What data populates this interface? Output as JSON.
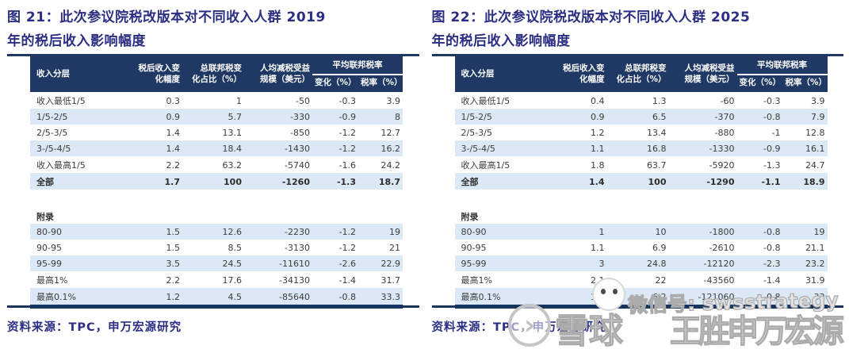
{
  "panels": [
    {
      "title": "图 21：此次参议院税改版本对不同收入人群 2019\n年的税后收入影响幅度",
      "table": {
        "header": {
          "income_group": "收入分层",
          "after_tax_change": "税后收入变\n化幅度",
          "federal_tax_share": "总联邦税变\n化占比（%）",
          "per_capita_benefit": "人均减税受益\n规模（美元）",
          "avg_federal_rate_group": "平均联邦税率",
          "rate_change": "变化（%）",
          "rate_level": "税率（%）"
        },
        "main_rows": [
          [
            "收入最低1/5",
            "0.3",
            "1",
            "-50",
            "-0.3",
            "3.9"
          ],
          [
            "1/5-2/5",
            "0.9",
            "5.7",
            "-330",
            "-0.9",
            "8"
          ],
          [
            "2/5-3/5",
            "1.4",
            "13.1",
            "-850",
            "-1.2",
            "12.7"
          ],
          [
            "3-/5-4/5",
            "1.4",
            "18.4",
            "-1430",
            "-1.2",
            "16.2"
          ],
          [
            "收入最高1/5",
            "2.2",
            "63.2",
            "-5740",
            "-1.6",
            "24.2"
          ],
          [
            "全部",
            "1.7",
            "100",
            "-1260",
            "-1.3",
            "18.7"
          ]
        ],
        "appendix_label": "附录",
        "appendix_rows": [
          [
            "80-90",
            "1.5",
            "12.6",
            "-2230",
            "-1.2",
            "19"
          ],
          [
            "90-95",
            "1.5",
            "8.5",
            "-3130",
            "-1.2",
            "21"
          ],
          [
            "95-99",
            "3.5",
            "24.5",
            "-11610",
            "-2.6",
            "22.9"
          ],
          [
            "最高1%",
            "2.2",
            "17.6",
            "-34130",
            "-1.4",
            "31.7"
          ],
          [
            "最高0.1%",
            "1.2",
            "4.5",
            "-85640",
            "-0.8",
            "33.3"
          ]
        ]
      },
      "source": "资料来源：TPC，申万宏源研究"
    },
    {
      "title": "图 22：此次参议院税改版本对不同收入人群 2025\n年的税后收入影响幅度",
      "table": {
        "header": {
          "income_group": "收入分层",
          "after_tax_change": "税后收入变\n化幅度",
          "federal_tax_share": "总联邦税变\n化占比（%）",
          "per_capita_benefit": "人均减税受益\n规模（美元）",
          "avg_federal_rate_group": "平均联邦税率",
          "rate_change": "变化（%）",
          "rate_level": "税率（%）"
        },
        "main_rows": [
          [
            "收入最低1/5",
            "0.4",
            "1.3",
            "-60",
            "-0.3",
            "3.9"
          ],
          [
            "1/5-2/5",
            "0.9",
            "6.5",
            "-370",
            "-0.8",
            "7.9"
          ],
          [
            "2/5-3/5",
            "1.2",
            "13.4",
            "-880",
            "-1",
            "12.8"
          ],
          [
            "3-/5-4/5",
            "1.1",
            "16.8",
            "-1330",
            "-0.9",
            "16.1"
          ],
          [
            "收入最高1/5",
            "1.8",
            "63.7",
            "-5920",
            "-1.3",
            "24.7"
          ],
          [
            "全部",
            "1.4",
            "100",
            "-1290",
            "-1.1",
            "18.9"
          ]
        ],
        "appendix_label": "附录",
        "appendix_rows": [
          [
            "80-90",
            "1",
            "10",
            "-1800",
            "-0.8",
            "19"
          ],
          [
            "90-95",
            "1.1",
            "6.9",
            "-2610",
            "-0.8",
            "21.1"
          ],
          [
            "95-99",
            "3",
            "24.8",
            "-12120",
            "-2.3",
            "23.2"
          ],
          [
            "最高1%",
            "2.1",
            "22",
            "-43560",
            "-1.4",
            "31.9"
          ],
          [
            "最高0.1%",
            "1.3",
            "6.2",
            "-121060",
            "-0.8",
            "33"
          ]
        ]
      },
      "source": "资料来源：TPC，申万宏源研究"
    }
  ],
  "watermark": {
    "wechat_label": "微信号: swsstrategy",
    "brand_text": "雪球",
    "names_text": "王胜申万宏源",
    "ring_glyph": "›"
  },
  "colors": {
    "title_navy": "#2b2e83",
    "header_navy": "#1f3864",
    "rule_navy": "#17355e",
    "row_light_blue": "#dbe9f6",
    "watermark_gray": "#ababab"
  }
}
